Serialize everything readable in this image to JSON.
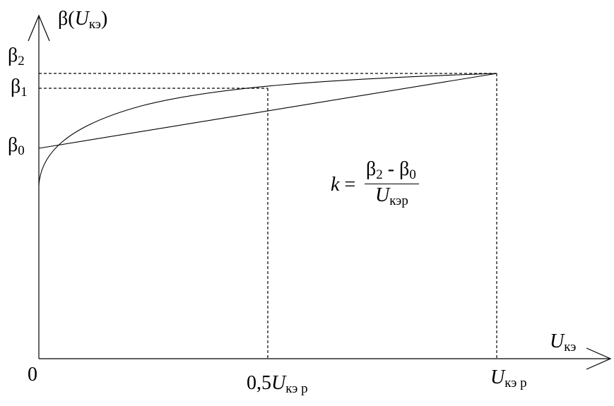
{
  "axes": {
    "y_label": "β(",
    "y_label_var": "U",
    "y_label_sub": "кэ",
    "y_label_close": ")",
    "x_label_var": "U",
    "x_label_sub": "кэ",
    "origin": "0"
  },
  "y_ticks": {
    "beta2": {
      "sym": "β",
      "sub": "2"
    },
    "beta1": {
      "sym": "β",
      "sub": "1"
    },
    "beta0": {
      "sym": "β",
      "sub": "0"
    }
  },
  "x_ticks": {
    "half": {
      "prefix": "0,5",
      "var": "U",
      "sub": "кэ р"
    },
    "full": {
      "var": "U",
      "sub": "кэ р"
    }
  },
  "formula": {
    "lhs": "k",
    "eq": "=",
    "num_a": "β",
    "num_a_sub": "2",
    "num_op": " - ",
    "num_b": "β",
    "num_b_sub": "0",
    "den_var": "U",
    "den_sub": "кэр"
  },
  "colors": {
    "line": "#000000",
    "background": "#ffffff"
  }
}
